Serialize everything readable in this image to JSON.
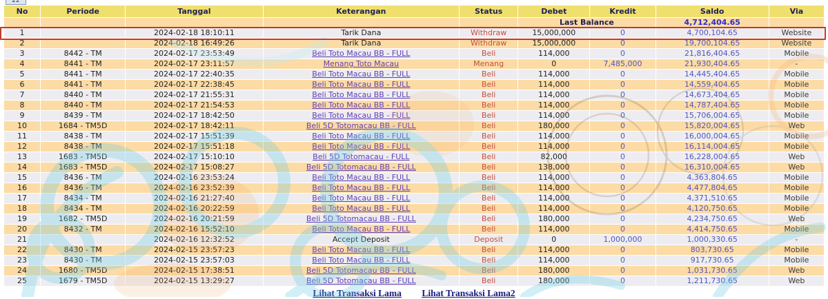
{
  "page": {
    "cropped_button_label": "22"
  },
  "colors": {
    "header_bg": "#EFE06E",
    "row_peach": "#FCDBA5",
    "row_gray": "#EDEDF1",
    "highlight_border": "#C23B27",
    "status_red": "#C34F3F",
    "link_purple": "#6240B5",
    "amount_purple": "#5454B8",
    "balance_blue": "#2B2BCB",
    "footer_navy": "#191980"
  },
  "table": {
    "columns": [
      "No",
      "Periode",
      "Tanggal",
      "Keterangan",
      "Status",
      "Debet",
      "Kredit",
      "Saldo",
      "Via"
    ],
    "last_balance": {
      "label": "Last Balance",
      "value": "4,712,404.65"
    },
    "highlighted_row_no": "1",
    "rows": [
      {
        "no": "1",
        "periode": "",
        "tanggal": "2024-02-18 18:10:11",
        "keterangan": "Tarik Dana",
        "link": false,
        "status": "Withdraw",
        "debet": "15,000,000",
        "kredit": "0",
        "saldo": "4,700,104.65",
        "via": "Website"
      },
      {
        "no": "2",
        "periode": "",
        "tanggal": "2024-02-18 16:49:26",
        "keterangan": "Tarik Dana",
        "link": false,
        "status": "Withdraw",
        "debet": "15,000,000",
        "kredit": "0",
        "saldo": "19,700,104.65",
        "via": "Website"
      },
      {
        "no": "3",
        "periode": "8442 - TM",
        "tanggal": "2024-02-17 23:53:49",
        "keterangan": "Beli Toto Macau BB - FULL",
        "link": true,
        "status": "Beli",
        "debet": "114,000",
        "kredit": "0",
        "saldo": "21,816,404.65",
        "via": "Mobile"
      },
      {
        "no": "4",
        "periode": "8441 - TM",
        "tanggal": "2024-02-17 23:11:57",
        "keterangan": "Menang Toto Macau",
        "link": true,
        "status": "Menang",
        "debet": "0",
        "kredit": "7,485,000",
        "saldo": "21,930,404.65",
        "via": "-"
      },
      {
        "no": "5",
        "periode": "8441 - TM",
        "tanggal": "2024-02-17 22:40:35",
        "keterangan": "Beli Toto Macau BB - FULL",
        "link": true,
        "status": "Beli",
        "debet": "114,000",
        "kredit": "0",
        "saldo": "14,445,404.65",
        "via": "Mobile"
      },
      {
        "no": "6",
        "periode": "8441 - TM",
        "tanggal": "2024-02-17 22:38:45",
        "keterangan": "Beli Toto Macau BB - FULL",
        "link": true,
        "status": "Beli",
        "debet": "114,000",
        "kredit": "0",
        "saldo": "14,559,404.65",
        "via": "Mobile"
      },
      {
        "no": "7",
        "periode": "8440 - TM",
        "tanggal": "2024-02-17 21:55:31",
        "keterangan": "Beli Toto Macau BB - FULL",
        "link": true,
        "status": "Beli",
        "debet": "114,000",
        "kredit": "0",
        "saldo": "14,673,404.65",
        "via": "Mobile"
      },
      {
        "no": "8",
        "periode": "8440 - TM",
        "tanggal": "2024-02-17 21:54:53",
        "keterangan": "Beli Toto Macau BB - FULL",
        "link": true,
        "status": "Beli",
        "debet": "114,000",
        "kredit": "0",
        "saldo": "14,787,404.65",
        "via": "Mobile"
      },
      {
        "no": "9",
        "periode": "8439 - TM",
        "tanggal": "2024-02-17 18:42:50",
        "keterangan": "Beli Toto Macau BB - FULL",
        "link": true,
        "status": "Beli",
        "debet": "114,000",
        "kredit": "0",
        "saldo": "15,706,004.65",
        "via": "Mobile"
      },
      {
        "no": "10",
        "periode": "1684 - TM5D",
        "tanggal": "2024-02-17 18:42:11",
        "keterangan": "Beli 5D Totomacau BB - FULL",
        "link": true,
        "status": "Beli",
        "debet": "180,000",
        "kredit": "0",
        "saldo": "15,820,004.65",
        "via": "Web"
      },
      {
        "no": "11",
        "periode": "8438 - TM",
        "tanggal": "2024-02-17 15:51:39",
        "keterangan": "Beli Toto Macau BB - FULL",
        "link": true,
        "status": "Beli",
        "debet": "114,000",
        "kredit": "0",
        "saldo": "16,000,004.65",
        "via": "Mobile"
      },
      {
        "no": "12",
        "periode": "8438 - TM",
        "tanggal": "2024-02-17 15:51:18",
        "keterangan": "Beli Toto Macau BB - FULL",
        "link": true,
        "status": "Beli",
        "debet": "114,000",
        "kredit": "0",
        "saldo": "16,114,004.65",
        "via": "Mobile"
      },
      {
        "no": "13",
        "periode": "1683 - TM5D",
        "tanggal": "2024-02-17 15:10:10",
        "keterangan": "Beli 5D Totomacau - FULL",
        "link": true,
        "status": "Beli",
        "debet": "82,000",
        "kredit": "0",
        "saldo": "16,228,004.65",
        "via": "Web"
      },
      {
        "no": "14",
        "periode": "1683 - TM5D",
        "tanggal": "2024-02-17 15:08:27",
        "keterangan": "Beli 5D Totomacau BB - FULL",
        "link": true,
        "status": "Beli",
        "debet": "138,000",
        "kredit": "0",
        "saldo": "16,310,004.65",
        "via": "Web"
      },
      {
        "no": "15",
        "periode": "8436 - TM",
        "tanggal": "2024-02-16 23:53:24",
        "keterangan": "Beli Toto Macau BB - FULL",
        "link": true,
        "status": "Beli",
        "debet": "114,000",
        "kredit": "0",
        "saldo": "4,363,804.65",
        "via": "Mobile"
      },
      {
        "no": "16",
        "periode": "8436 - TM",
        "tanggal": "2024-02-16 23:52:39",
        "keterangan": "Beli Toto Macau BB - FULL",
        "link": true,
        "status": "Beli",
        "debet": "114,000",
        "kredit": "0",
        "saldo": "4,477,804.65",
        "via": "Mobile"
      },
      {
        "no": "17",
        "periode": "8434 - TM",
        "tanggal": "2024-02-16 21:27:40",
        "keterangan": "Beli Toto Macau BB - FULL",
        "link": true,
        "status": "Beli",
        "debet": "114,000",
        "kredit": "0",
        "saldo": "4,371,510.65",
        "via": "Mobile"
      },
      {
        "no": "18",
        "periode": "8434 - TM",
        "tanggal": "2024-02-16 20:22:59",
        "keterangan": "Beli Toto Macau BB - FULL",
        "link": true,
        "status": "Beli",
        "debet": "114,000",
        "kredit": "0",
        "saldo": "4,120,750.65",
        "via": "Mobile"
      },
      {
        "no": "19",
        "periode": "1682 - TM5D",
        "tanggal": "2024-02-16 20:21:59",
        "keterangan": "Beli 5D Totomacau BB - FULL",
        "link": true,
        "status": "Beli",
        "debet": "180,000",
        "kredit": "0",
        "saldo": "4,234,750.65",
        "via": "Web"
      },
      {
        "no": "20",
        "periode": "8432 - TM",
        "tanggal": "2024-02-16 15:52:10",
        "keterangan": "Beli Toto Macau BB - FULL",
        "link": true,
        "status": "Beli",
        "debet": "114,000",
        "kredit": "0",
        "saldo": "4,414,750.65",
        "via": "Mobile"
      },
      {
        "no": "21",
        "periode": "",
        "tanggal": "2024-02-16 12:32:52",
        "keterangan": "Accept Deposit",
        "link": false,
        "status": "Deposit",
        "debet": "0",
        "kredit": "1,000,000",
        "saldo": "1,000,330.65",
        "via": "-"
      },
      {
        "no": "22",
        "periode": "8430 - TM",
        "tanggal": "2024-02-15 23:57:23",
        "keterangan": "Beli Toto Macau BB - FULL",
        "link": true,
        "status": "Beli",
        "debet": "114,000",
        "kredit": "0",
        "saldo": "803,730.65",
        "via": "Mobile"
      },
      {
        "no": "23",
        "periode": "8430 - TM",
        "tanggal": "2024-02-15 23:57:03",
        "keterangan": "Beli Toto Macau BB - FULL",
        "link": true,
        "status": "Beli",
        "debet": "114,000",
        "kredit": "0",
        "saldo": "917,730.65",
        "via": "Mobile"
      },
      {
        "no": "24",
        "periode": "1680 - TM5D",
        "tanggal": "2024-02-15 17:38:51",
        "keterangan": "Beli 5D Totomacau BB - FULL",
        "link": true,
        "status": "Beli",
        "debet": "180,000",
        "kredit": "0",
        "saldo": "1,031,730.65",
        "via": "Web"
      },
      {
        "no": "25",
        "periode": "1679 - TM5D",
        "tanggal": "2024-02-15 13:29:27",
        "keterangan": "Beli 5D Totomacau BB - FULL",
        "link": true,
        "status": "Beli",
        "debet": "180,000",
        "kredit": "0",
        "saldo": "1,211,730.65",
        "via": "Web"
      }
    ]
  },
  "footer": {
    "links": [
      "Lihat Transaksi Lama",
      "Lihat Transaksi Lama2"
    ]
  }
}
